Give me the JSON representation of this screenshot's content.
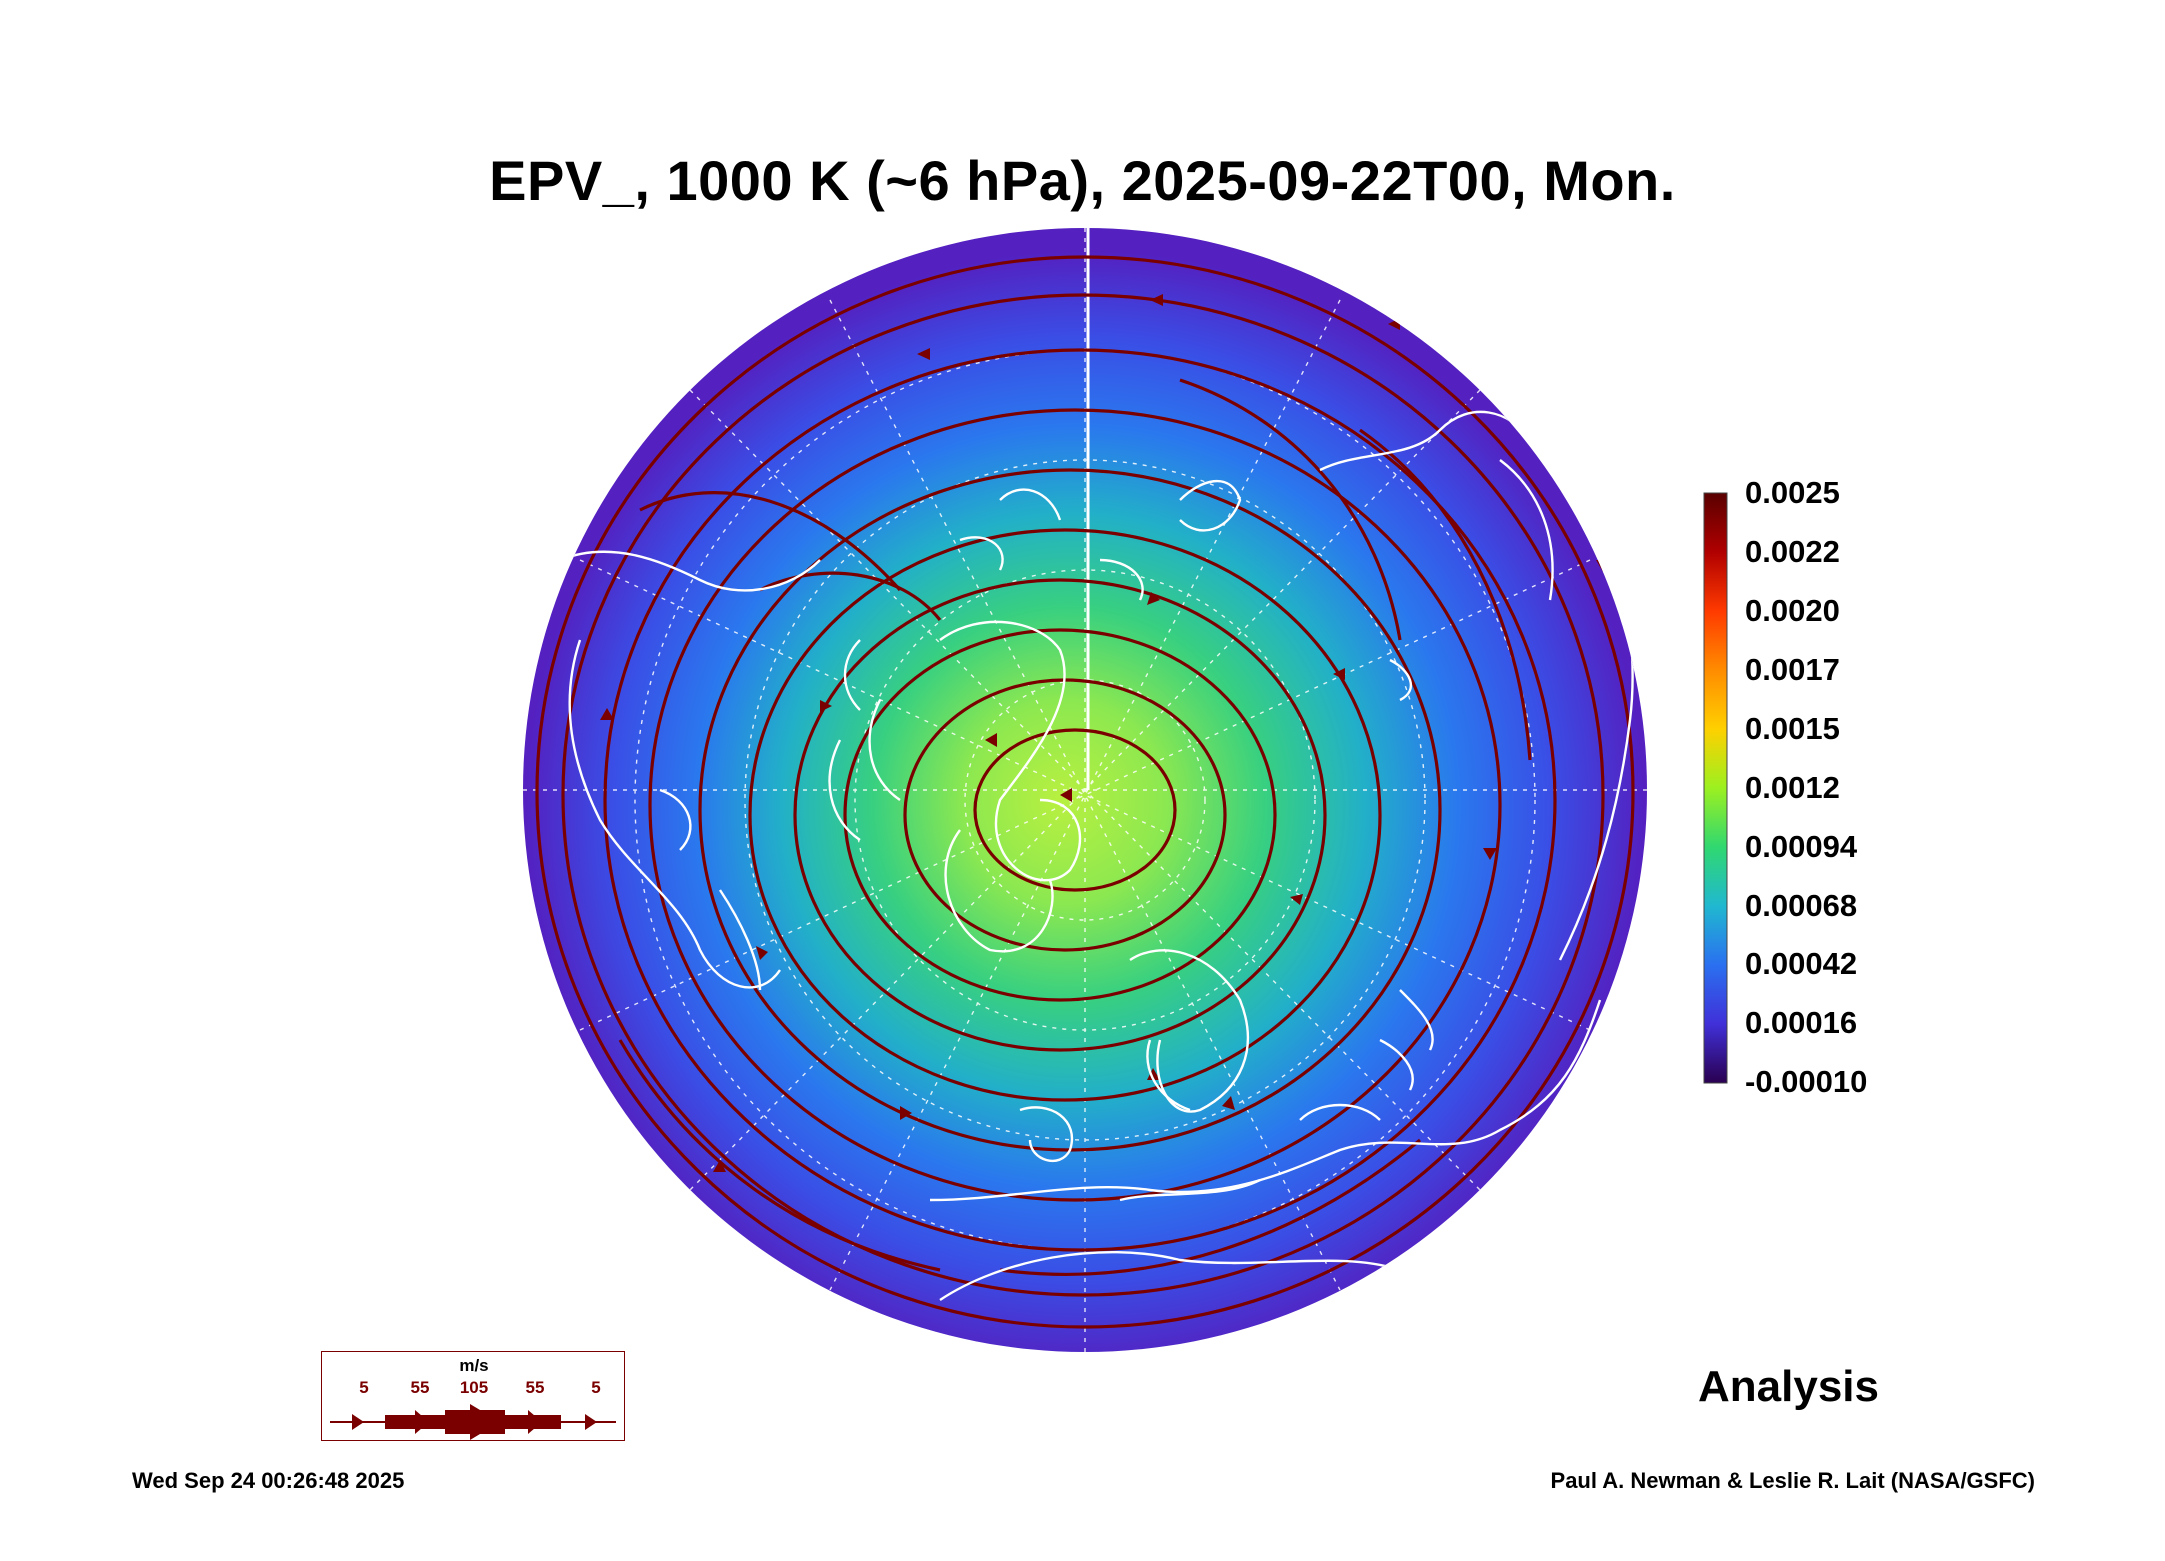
{
  "header": {
    "title": "EPV_, 1000 K (~6 hPa), 2025-09-22T00, Mon."
  },
  "colorbar": {
    "labels": [
      "0.0025",
      "0.0022",
      "0.0020",
      "0.0017",
      "0.0015",
      "0.0012",
      "0.00094",
      "0.00068",
      "0.00042",
      "0.00016",
      "-0.00010"
    ],
    "stops": [
      "#5a0000",
      "#b00000",
      "#ff3a00",
      "#ff8c00",
      "#ffd000",
      "#9cf020",
      "#30d870",
      "#20b8d0",
      "#2a70f0",
      "#4030d8",
      "#2a0050"
    ]
  },
  "wind_legend": {
    "unit": "m/s",
    "values": [
      "5",
      "55",
      "105",
      "55",
      "5"
    ]
  },
  "footer": {
    "stamp": "Analysis",
    "timestamp": "Wed Sep 24 00:26:48 2025",
    "credits": "Paul A. Newman & Leslie R. Lait (NASA/GSFC)"
  },
  "map": {
    "projection": "orthographic-polar-north",
    "field": "EPV_",
    "streamline_color": "#7a0000",
    "coastline_color": "#ffffff",
    "graticule_color": "#ffffff",
    "field_colors": {
      "pole": "#9cf020",
      "mid": "#30c890",
      "outer": "#2a70f0",
      "rim": "#5a28c8"
    }
  }
}
